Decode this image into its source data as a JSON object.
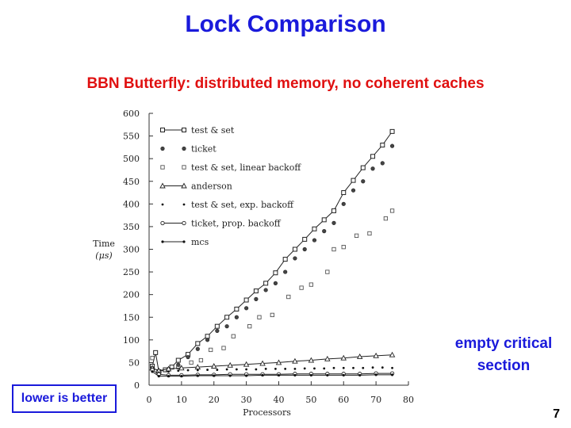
{
  "slide": {
    "title": "Lock Comparison",
    "subtitle": "BBN Butterfly: distributed memory, no coherent caches",
    "note": "empty critical section",
    "badge": "lower is better",
    "page_number": "7",
    "accent_color": "#1a1adb",
    "subtitle_color": "#e01010"
  },
  "chart_data": {
    "type": "scatter",
    "xlabel": "Processors",
    "ylabel": "Time (μs)",
    "xlim": [
      0,
      80
    ],
    "ylim": [
      0,
      600
    ],
    "x_ticks": [
      0,
      10,
      20,
      30,
      40,
      50,
      60,
      70,
      80
    ],
    "y_ticks": [
      0,
      50,
      100,
      150,
      200,
      250,
      300,
      350,
      400,
      450,
      500,
      550,
      600
    ],
    "grid": false,
    "legend_position": "top-left",
    "series": [
      {
        "name": "test & set",
        "marker": "square",
        "line": true,
        "x": [
          1,
          2,
          3,
          5,
          7,
          9,
          12,
          15,
          18,
          21,
          24,
          27,
          30,
          33,
          36,
          39,
          42,
          45,
          48,
          51,
          54,
          57,
          60,
          63,
          66,
          69,
          72,
          75
        ],
        "y": [
          42,
          72,
          30,
          34,
          40,
          55,
          68,
          92,
          108,
          130,
          150,
          168,
          188,
          208,
          225,
          248,
          278,
          300,
          322,
          345,
          365,
          385,
          425,
          452,
          480,
          505,
          530,
          560
        ]
      },
      {
        "name": "ticket",
        "marker": "circle",
        "x": [
          1,
          3,
          6,
          9,
          12,
          15,
          18,
          21,
          24,
          27,
          30,
          33,
          36,
          39,
          42,
          45,
          48,
          51,
          54,
          57,
          60,
          63,
          66,
          69,
          72,
          75
        ],
        "y": [
          38,
          30,
          36,
          45,
          62,
          80,
          100,
          120,
          130,
          150,
          170,
          190,
          210,
          225,
          250,
          280,
          300,
          320,
          340,
          358,
          400,
          430,
          450,
          478,
          490,
          528
        ]
      },
      {
        "name": "test & set, linear backoff",
        "marker": "open-square",
        "x": [
          1,
          3,
          6,
          9,
          13,
          16,
          19,
          23,
          26,
          31,
          34,
          38,
          43,
          47,
          50,
          55,
          57,
          60,
          64,
          68,
          73,
          75
        ],
        "y": [
          60,
          28,
          35,
          40,
          50,
          55,
          78,
          82,
          108,
          130,
          150,
          155,
          195,
          215,
          222,
          250,
          300,
          305,
          330,
          335,
          368,
          385
        ]
      },
      {
        "name": "anderson",
        "marker": "triangle",
        "line": true,
        "x": [
          1,
          3,
          6,
          10,
          15,
          20,
          25,
          30,
          35,
          40,
          45,
          50,
          55,
          60,
          65,
          70,
          75
        ],
        "y": [
          38,
          32,
          36,
          38,
          40,
          42,
          44,
          46,
          48,
          50,
          53,
          55,
          58,
          60,
          63,
          65,
          67
        ]
      },
      {
        "name": "test & set, exp. backoff",
        "marker": "dot",
        "x": [
          1,
          3,
          6,
          9,
          12,
          15,
          18,
          21,
          24,
          27,
          30,
          33,
          36,
          39,
          42,
          45,
          48,
          51,
          54,
          57,
          60,
          63,
          66,
          69,
          72,
          75
        ],
        "y": [
          32,
          28,
          30,
          32,
          33,
          33,
          34,
          34,
          35,
          35,
          35,
          35,
          36,
          36,
          36,
          36,
          37,
          37,
          37,
          38,
          38,
          38,
          38,
          39,
          39,
          38
        ]
      },
      {
        "name": "ticket, prop. backoff",
        "marker": "open-circle",
        "line": true,
        "x": [
          1,
          3,
          6,
          10,
          15,
          20,
          25,
          30,
          35,
          40,
          45,
          50,
          55,
          60,
          65,
          70,
          75
        ],
        "y": [
          34,
          24,
          22,
          22,
          23,
          23,
          24,
          24,
          24,
          24,
          25,
          25,
          25,
          25,
          25,
          26,
          26
        ]
      },
      {
        "name": "mcs",
        "marker": "small-dot",
        "line": true,
        "x": [
          1,
          3,
          6,
          10,
          15,
          20,
          25,
          30,
          35,
          40,
          45,
          50,
          55,
          60,
          65,
          70,
          75
        ],
        "y": [
          30,
          20,
          20,
          20,
          21,
          21,
          21,
          21,
          22,
          22,
          22,
          22,
          22,
          22,
          22,
          23,
          23
        ]
      }
    ]
  }
}
